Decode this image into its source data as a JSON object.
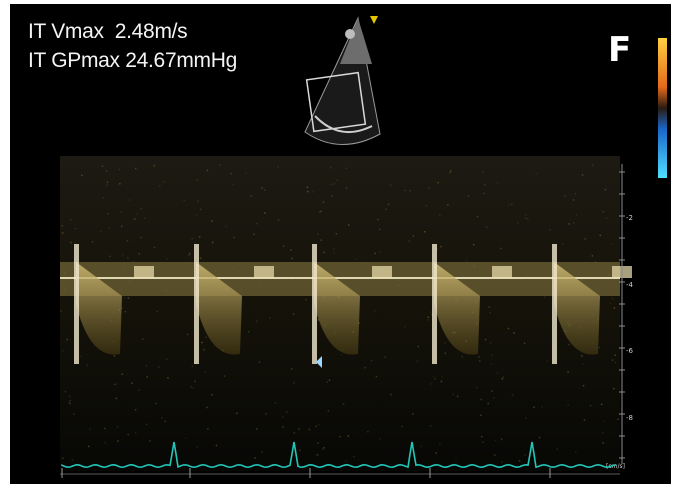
{
  "measurements": {
    "it_vmax": "IT Vmax  2.48m/s",
    "it_gpmax": "IT GPmax 24.67mmHg"
  },
  "panel_letter": "F",
  "scale_ticks": [
    "-2",
    "-4",
    "-6",
    "-8"
  ],
  "baseline_label": "[cm/s]",
  "colors": {
    "doppler": "#c9b35a",
    "ecg": "#23c6b8",
    "text": "#f4f4f4"
  },
  "icons": [
    "echo-sector-thumbnail-icon",
    "color-scale-bar-icon"
  ]
}
